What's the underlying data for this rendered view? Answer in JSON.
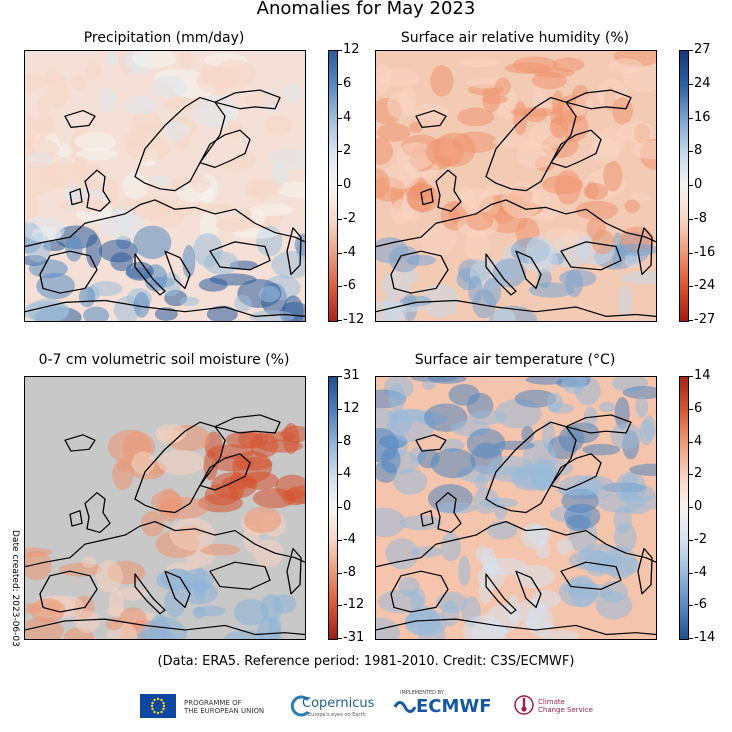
{
  "main_title": "Anomalies for May 2023",
  "panels": [
    {
      "title": "Precipitation (mm/day)",
      "ticks": [
        "12",
        "6",
        "4",
        "2",
        "0",
        "-2",
        "-4",
        "-6",
        "-12"
      ],
      "colors": [
        "#2b5c9c",
        "#5a8cc4",
        "#9dbddb",
        "#dde7ef",
        "#f6f4f2",
        "#f6d7c8",
        "#eda083",
        "#d95b38",
        "#a6241a"
      ],
      "land_mask": false,
      "tint": "#f4e0d6"
    },
    {
      "title": "Surface air relative humidity (%)",
      "ticks": [
        "27",
        "24",
        "16",
        "8",
        "0",
        "-8",
        "-16",
        "-24",
        "-27"
      ],
      "colors": [
        "#113a77",
        "#2e62a7",
        "#7aa4cf",
        "#c8d9ea",
        "#f7f4f1",
        "#f7d5c3",
        "#ef9670",
        "#dc4d2a",
        "#a41a12"
      ],
      "land_mask": false,
      "tint": "#f3cbb5"
    },
    {
      "title": "0-7 cm volumetric soil moisture (%)",
      "ticks": [
        "31",
        "12",
        "8",
        "4",
        "0",
        "-4",
        "-8",
        "-12",
        "-31"
      ],
      "colors": [
        "#1e4f93",
        "#4f80bd",
        "#8db3d8",
        "#cfdeec",
        "#f6f4f2",
        "#f6d2bf",
        "#ec9671",
        "#d65230",
        "#9d1e14"
      ],
      "land_mask": true,
      "tint": "#eda07d"
    },
    {
      "title": "Surface air temperature (°C)",
      "ticks": [
        "14",
        "6",
        "4",
        "2",
        "0",
        "-2",
        "-4",
        "-6",
        "-14"
      ],
      "colors": [
        "#a8231a",
        "#d85a33",
        "#ee9a76",
        "#f8d4c2",
        "#f7f4f1",
        "#d5e1ee",
        "#98b9da",
        "#5486c0",
        "#1d4f91"
      ],
      "land_mask": false,
      "tint": "#f4c4ac"
    }
  ],
  "credit": "(Data: ERA5.  Reference period: 1981-2010.  Credit: C3S/ECMWF)",
  "date_created": "Date created:  2023-06-03",
  "logos": {
    "eu": [
      "PROGRAMME OF",
      "THE EUROPEAN UNION"
    ],
    "copernicus": "Copernicus",
    "copernicus_sub": "Europe's eyes on Earth",
    "ecmwf_small": "IMPLEMENTED BY",
    "ecmwf": "ECMWF",
    "c3s": [
      "Climate",
      "Change Service"
    ]
  }
}
